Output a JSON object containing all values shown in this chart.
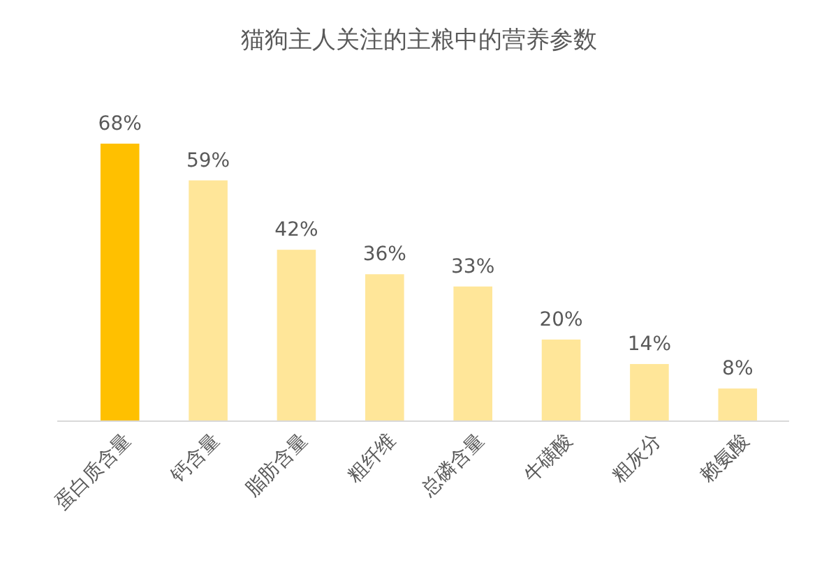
{
  "chart_data": {
    "type": "bar",
    "title": "猫狗主人关注的主粮中的营养参数",
    "categories": [
      "蛋白质含量",
      "钙含量",
      "脂肪含量",
      "粗纤维",
      "总磷含量",
      "牛磺酸",
      "粗灰分",
      "赖氨酸"
    ],
    "values": [
      68,
      59,
      42,
      36,
      33,
      20,
      14,
      8
    ],
    "value_labels": [
      "68%",
      "59%",
      "42%",
      "36%",
      "33%",
      "20%",
      "14%",
      "8%"
    ],
    "colors": [
      "#ffc000",
      "#ffe699",
      "#ffe699",
      "#ffe699",
      "#ffe699",
      "#ffe699",
      "#ffe699",
      "#ffe699"
    ]
  }
}
